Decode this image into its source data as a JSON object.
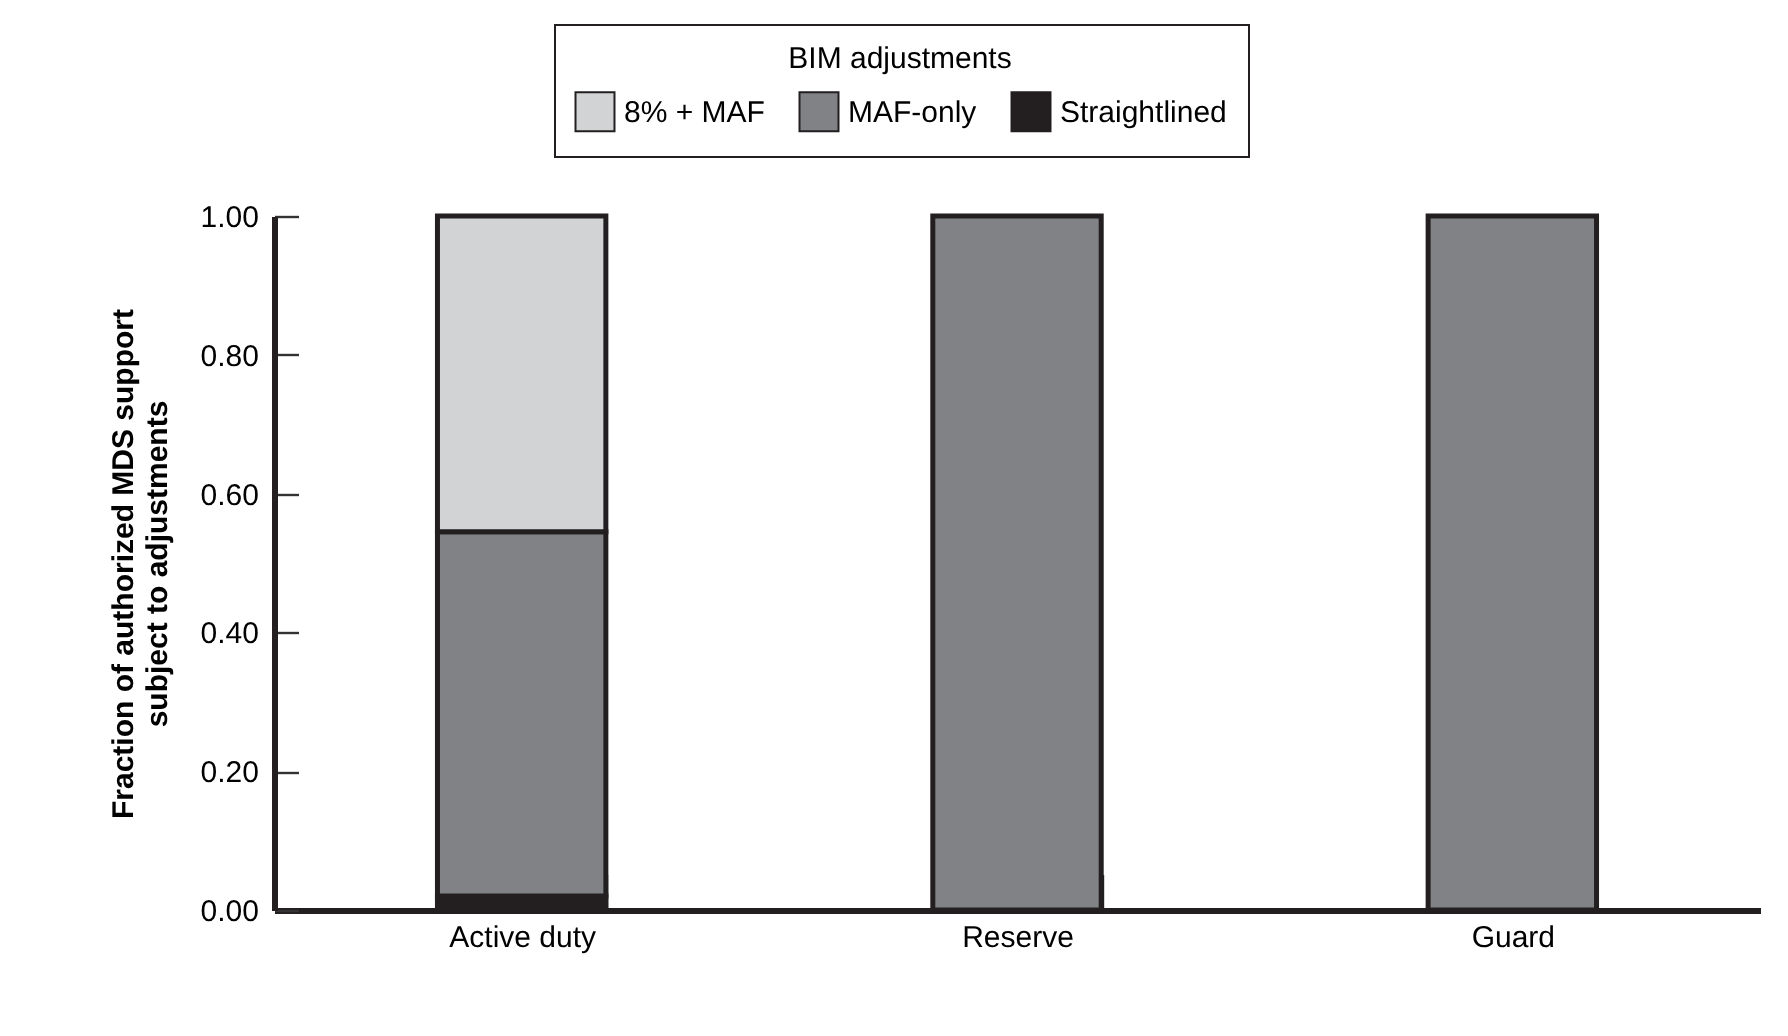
{
  "chart_data": {
    "type": "bar",
    "stacked": true,
    "ylabel": "Fraction of authorized MDS support\nsubject to adjustments",
    "legend_title": "BIM adjustments",
    "legend": "top",
    "categories": [
      "Active duty",
      "Reserve",
      "Guard"
    ],
    "series": [
      {
        "name": "Straightlined",
        "color": "#231f20",
        "values": [
          0.02,
          0,
          0
        ]
      },
      {
        "name": "MAF-only",
        "color": "#808285",
        "values": [
          0.525,
          1.0,
          1.0
        ]
      },
      {
        "name": "8% + MAF",
        "color": "#d1d3d4",
        "values": [
          0.455,
          0,
          0
        ]
      }
    ],
    "ylim": [
      0,
      1
    ],
    "yticks": [
      {
        "value": 0,
        "label": "0.00"
      },
      {
        "value": 0.2,
        "label": "0.20"
      },
      {
        "value": 0.4,
        "label": "0.40"
      },
      {
        "value": 0.6,
        "label": "0.60"
      },
      {
        "value": 0.8,
        "label": "0.80"
      },
      {
        "value": 1,
        "label": "1.00"
      }
    ]
  }
}
